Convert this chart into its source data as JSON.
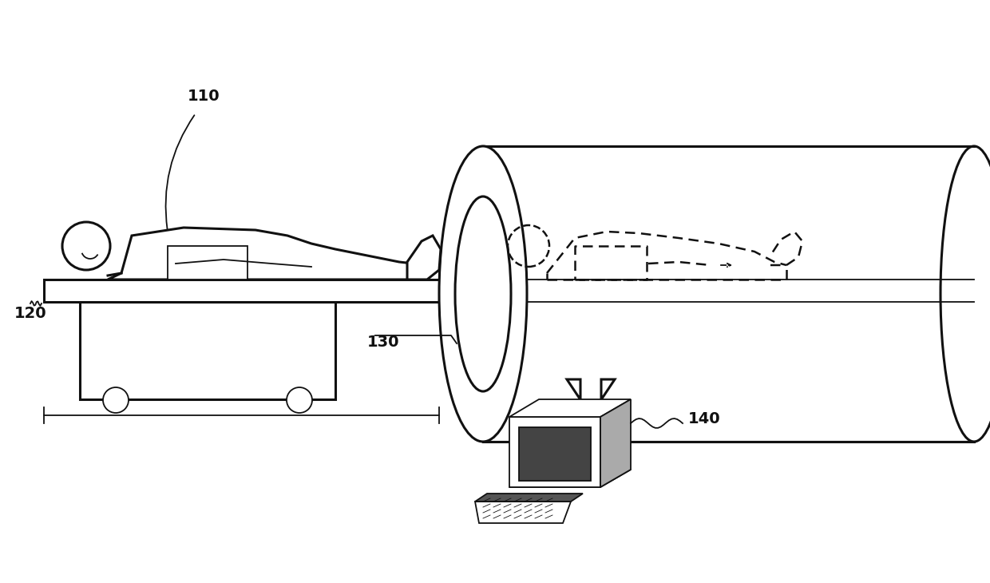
{
  "bg_color": "#ffffff",
  "lc": "#111111",
  "label_110": "110",
  "label_120": "120",
  "label_130": "130",
  "label_140": "140",
  "label_fontsize": 14,
  "fig_width": 12.4,
  "fig_height": 7.3,
  "dpi": 100,
  "lw_main": 2.2,
  "lw_thin": 1.3,
  "lw_dash": 1.8
}
